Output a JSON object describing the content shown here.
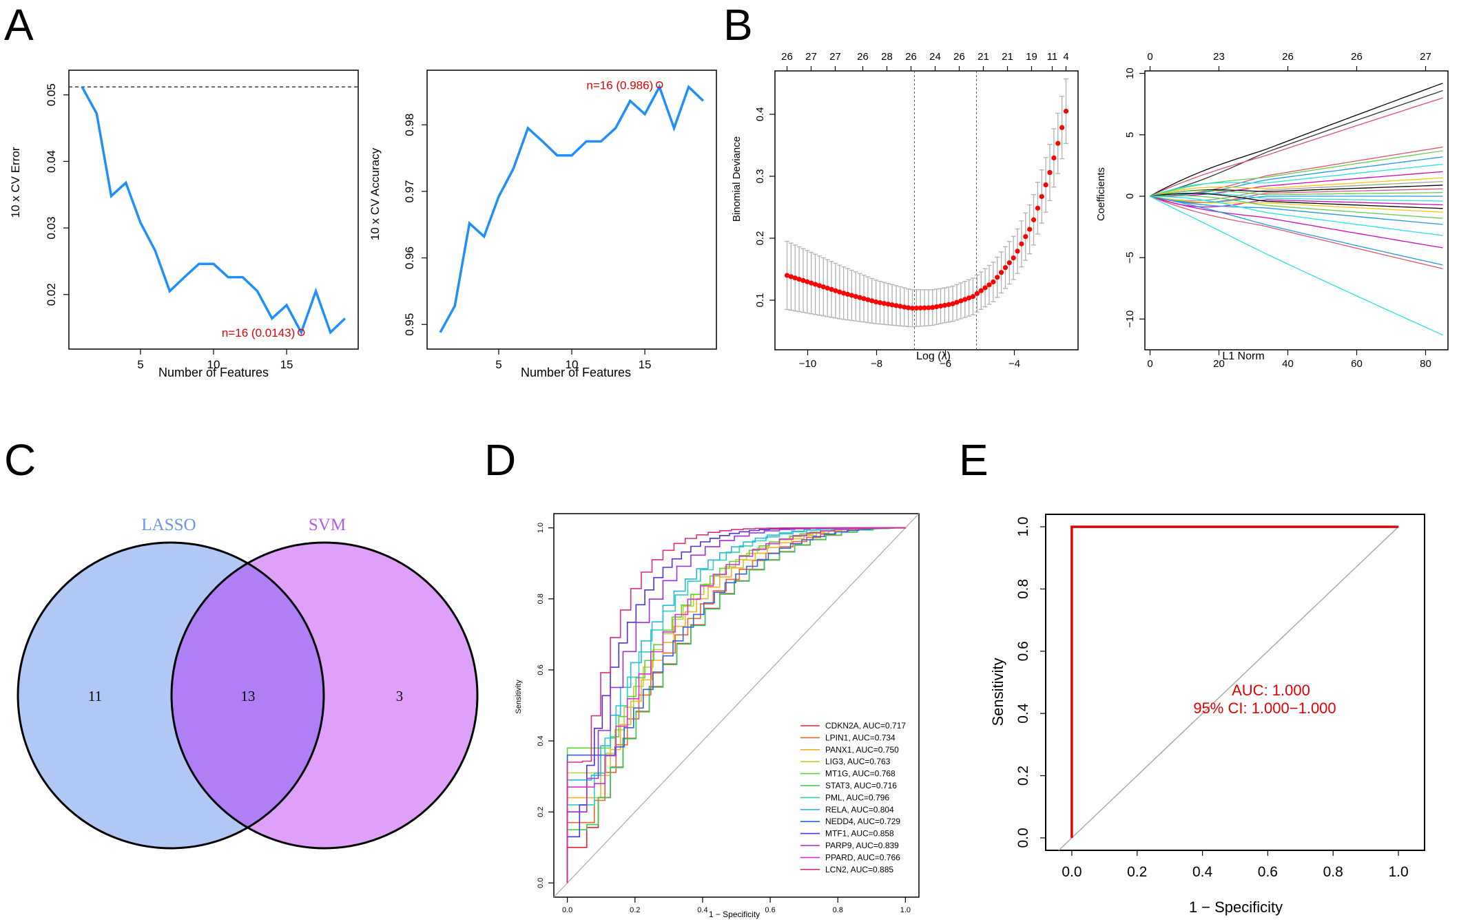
{
  "panel_letters": [
    "A",
    "B",
    "C",
    "D",
    "E"
  ],
  "chart_data": [
    {
      "id": "A1",
      "type": "line",
      "xlabel": "Number of Features",
      "ylabel": "10 x CV Error",
      "x": [
        1,
        2,
        3,
        4,
        5,
        6,
        7,
        8,
        9,
        10,
        11,
        12,
        13,
        14,
        15,
        16,
        17,
        18,
        19
      ],
      "y": [
        0.0512,
        0.0472,
        0.0348,
        0.0368,
        0.0308,
        0.0266,
        0.0205,
        0.0226,
        0.0246,
        0.0246,
        0.0226,
        0.0226,
        0.0205,
        0.0164,
        0.0184,
        0.0143,
        0.0205,
        0.0143,
        0.0164
      ],
      "xticks": [
        5,
        10,
        15
      ],
      "yticks": [
        0.02,
        0.03,
        0.04,
        0.05
      ],
      "xlim": [
        0.1,
        19.9
      ],
      "ylim": [
        0.0118,
        0.0537
      ],
      "reference_line": 0.0512,
      "color": "#1f8fff",
      "annotation": {
        "x": 16,
        "y": 0.0143,
        "text": "n=16 (0.0143)"
      }
    },
    {
      "id": "A2",
      "type": "line",
      "xlabel": "Number of Features",
      "ylabel": "10 x CV Accuracy",
      "x": [
        1,
        2,
        3,
        4,
        5,
        6,
        7,
        8,
        9,
        10,
        11,
        12,
        13,
        14,
        15,
        16,
        17,
        18,
        19
      ],
      "y": [
        0.9488,
        0.9528,
        0.9652,
        0.9632,
        0.9692,
        0.9734,
        0.9795,
        0.9775,
        0.9754,
        0.9754,
        0.9775,
        0.9775,
        0.9795,
        0.9836,
        0.9816,
        0.9857,
        0.9795,
        0.9857,
        0.9836
      ],
      "xticks": [
        5,
        10,
        15
      ],
      "yticks": [
        0.95,
        0.96,
        0.97,
        0.98
      ],
      "xlim": [
        0.1,
        19.9
      ],
      "ylim": [
        0.9463,
        0.9882
      ],
      "color": "#1f8fff",
      "annotation": {
        "x": 16,
        "y": 0.986,
        "text": "n=16 (0.986)"
      }
    },
    {
      "id": "B1",
      "type": "scatter",
      "xlabel": "Log (λ)",
      "ylabel": "Binomial Deviance",
      "x_start": -10.6,
      "x_end": -2.5,
      "n_points": 70,
      "curve": {
        "knots_x": [
          -10.6,
          -9.0,
          -8.0,
          -7.0,
          -6.4,
          -5.8,
          -5.2,
          -4.6,
          -4.0,
          -3.5,
          -3.0,
          -2.7,
          -2.5
        ],
        "knots_y": [
          0.14,
          0.112,
          0.097,
          0.087,
          0.088,
          0.094,
          0.106,
          0.13,
          0.17,
          0.22,
          0.3,
          0.36,
          0.405
        ]
      },
      "error_half_width": {
        "knots_x": [
          -10.6,
          -8.0,
          -7.0,
          -6.0,
          -5.0,
          -4.0,
          -3.0,
          -2.5
        ],
        "knots_y": [
          0.055,
          0.035,
          0.03,
          0.028,
          0.03,
          0.035,
          0.045,
          0.052
        ]
      },
      "vlines": [
        -6.9,
        -5.1
      ],
      "xticks": [
        -10,
        -8,
        -6,
        -4
      ],
      "yticks": [
        0.1,
        0.2,
        0.3,
        0.4
      ],
      "xlim": [
        -10.95,
        -2.15
      ],
      "ylim": [
        0.02,
        0.47
      ],
      "top_ticks_x": [
        -10.6,
        -9.9,
        -9.2,
        -8.4,
        -7.7,
        -7.0,
        -6.3,
        -5.6,
        -4.9,
        -4.2,
        -3.5,
        -2.9,
        -2.5
      ],
      "top_labels": [
        "26",
        "27",
        "27",
        "26",
        "28",
        "26",
        "24",
        "26",
        "21",
        "21",
        "19",
        "11",
        "4"
      ],
      "color": "#ff0000"
    },
    {
      "id": "B2",
      "type": "line",
      "xlabel": "L1 Norm",
      "ylabel": "Coefficients",
      "xticks": [
        0,
        20,
        40,
        60,
        80
      ],
      "yticks": [
        -10,
        -5,
        0,
        5,
        10
      ],
      "xlim": [
        -1.5,
        86.5
      ],
      "ylim": [
        -12.5,
        10.2
      ],
      "top_ticks_x": [
        0,
        20,
        40,
        60,
        80
      ],
      "top_labels": [
        "0",
        "23",
        "26",
        "26",
        "27"
      ],
      "x_max": 85,
      "paths": [
        {
          "end": 9.2,
          "wiggle": 0.3,
          "color": "#000000"
        },
        {
          "end": 8.6,
          "wiggle": 0.4,
          "color": "#333333"
        },
        {
          "end": 8.0,
          "wiggle": 0.2,
          "color": "#e0506a"
        },
        {
          "end": 4.0,
          "wiggle": 0.5,
          "color": "#df536b"
        },
        {
          "end": 3.7,
          "wiggle": 0.3,
          "color": "#61d04f"
        },
        {
          "end": 3.2,
          "wiggle": 0.4,
          "color": "#2297e6"
        },
        {
          "end": 2.6,
          "wiggle": 0.6,
          "color": "#28e2e5"
        },
        {
          "end": 2.0,
          "wiggle": 0.3,
          "color": "#cd0bbc"
        },
        {
          "end": 1.5,
          "wiggle": 0.5,
          "color": "#f5c710"
        },
        {
          "end": 1.2,
          "wiggle": 0.7,
          "color": "#9e9e9e"
        },
        {
          "end": 0.9,
          "wiggle": 0.4,
          "color": "#000000"
        },
        {
          "end": 0.6,
          "wiggle": 0.8,
          "color": "#df536b"
        },
        {
          "end": 0.3,
          "wiggle": 0.5,
          "color": "#61d04f"
        },
        {
          "end": 0.0,
          "wiggle": 0.6,
          "color": "#2297e6"
        },
        {
          "end": -0.4,
          "wiggle": 0.4,
          "color": "#28e2e5"
        },
        {
          "end": -0.7,
          "wiggle": 0.9,
          "color": "#cd0bbc"
        },
        {
          "end": -1.0,
          "wiggle": 0.5,
          "color": "#000000"
        },
        {
          "end": -1.3,
          "wiggle": 0.3,
          "color": "#f5c710"
        },
        {
          "end": -1.8,
          "wiggle": 0.4,
          "color": "#61d04f"
        },
        {
          "end": -2.3,
          "wiggle": 0.3,
          "color": "#2297e6"
        },
        {
          "end": -3.2,
          "wiggle": 0.4,
          "color": "#28e2e5"
        },
        {
          "end": -4.2,
          "wiggle": 0.3,
          "color": "#cd0bbc"
        },
        {
          "end": -5.6,
          "wiggle": 0.2,
          "color": "#2297e6"
        },
        {
          "end": -5.9,
          "wiggle": 0.3,
          "color": "#df536b"
        },
        {
          "end": -11.3,
          "wiggle": 0.1,
          "color": "#28e2e5"
        }
      ]
    },
    {
      "id": "D",
      "type": "line",
      "xlabel": "1 − Specificity",
      "ylabel": "Sensitivity",
      "xticks": [
        0.0,
        0.2,
        0.4,
        0.6,
        0.8,
        1.0
      ],
      "yticks": [
        0.0,
        0.2,
        0.4,
        0.6,
        0.8,
        1.0
      ],
      "xlim": [
        -0.04,
        1.04
      ],
      "ylim": [
        -0.04,
        1.04
      ],
      "series": [
        {
          "name": "CDKN2A, AUC=0.717",
          "auc": 0.717,
          "color": "#e8242a"
        },
        {
          "name": "LPIN1, AUC=0.734",
          "auc": 0.734,
          "color": "#f0622b"
        },
        {
          "name": "PANX1, AUC=0.750",
          "auc": 0.75,
          "color": "#f4b223"
        },
        {
          "name": "LIG3, AUC=0.763",
          "auc": 0.763,
          "color": "#b6d42b"
        },
        {
          "name": "MT1G, AUC=0.768",
          "auc": 0.768,
          "color": "#5ed12f"
        },
        {
          "name": "STAT3, AUC=0.716",
          "auc": 0.716,
          "color": "#2ecc52"
        },
        {
          "name": "PML, AUC=0.796",
          "auc": 0.796,
          "color": "#2ad4b2"
        },
        {
          "name": "RELA, AUC=0.804",
          "auc": 0.804,
          "color": "#2bb6e4"
        },
        {
          "name": "NEDD4, AUC=0.729",
          "auc": 0.729,
          "color": "#2d63e0"
        },
        {
          "name": "MTF1, AUC=0.858",
          "auc": 0.858,
          "color": "#4b2fe0"
        },
        {
          "name": "PARP9, AUC=0.839",
          "auc": 0.839,
          "color": "#9a2fe0"
        },
        {
          "name": "PPARD, AUC=0.766",
          "auc": 0.766,
          "color": "#d42fd8"
        },
        {
          "name": "LCN2, AUC=0.885",
          "auc": 0.885,
          "color": "#e02b84"
        }
      ]
    },
    {
      "id": "E",
      "type": "line",
      "xlabel": "1 − Specificity",
      "ylabel": "Sensitivity",
      "xticks": [
        0.0,
        0.2,
        0.4,
        0.6,
        0.8,
        1.0
      ],
      "yticks": [
        0.0,
        0.2,
        0.4,
        0.6,
        0.8,
        1.0
      ],
      "xlim": [
        -0.08,
        1.08
      ],
      "ylim": [
        -0.04,
        1.04
      ],
      "roc_x": [
        0.0,
        0.0,
        1.0
      ],
      "roc_y": [
        0.0,
        1.0,
        1.0
      ],
      "color": "#e00000",
      "auc_text": "AUC: 1.000",
      "ci_text": "95% CI: 1.000−1.000"
    }
  ],
  "venn": {
    "left_label": "LASSO",
    "right_label": "SVM",
    "left_only": "11",
    "both": "13",
    "right_only": "3",
    "left_color": "#b1c8f5",
    "right_color": "#dea0f8",
    "overlap_color": "#b07ef5",
    "left_label_color": "#6b93e6",
    "right_label_color": "#b85ae8"
  }
}
